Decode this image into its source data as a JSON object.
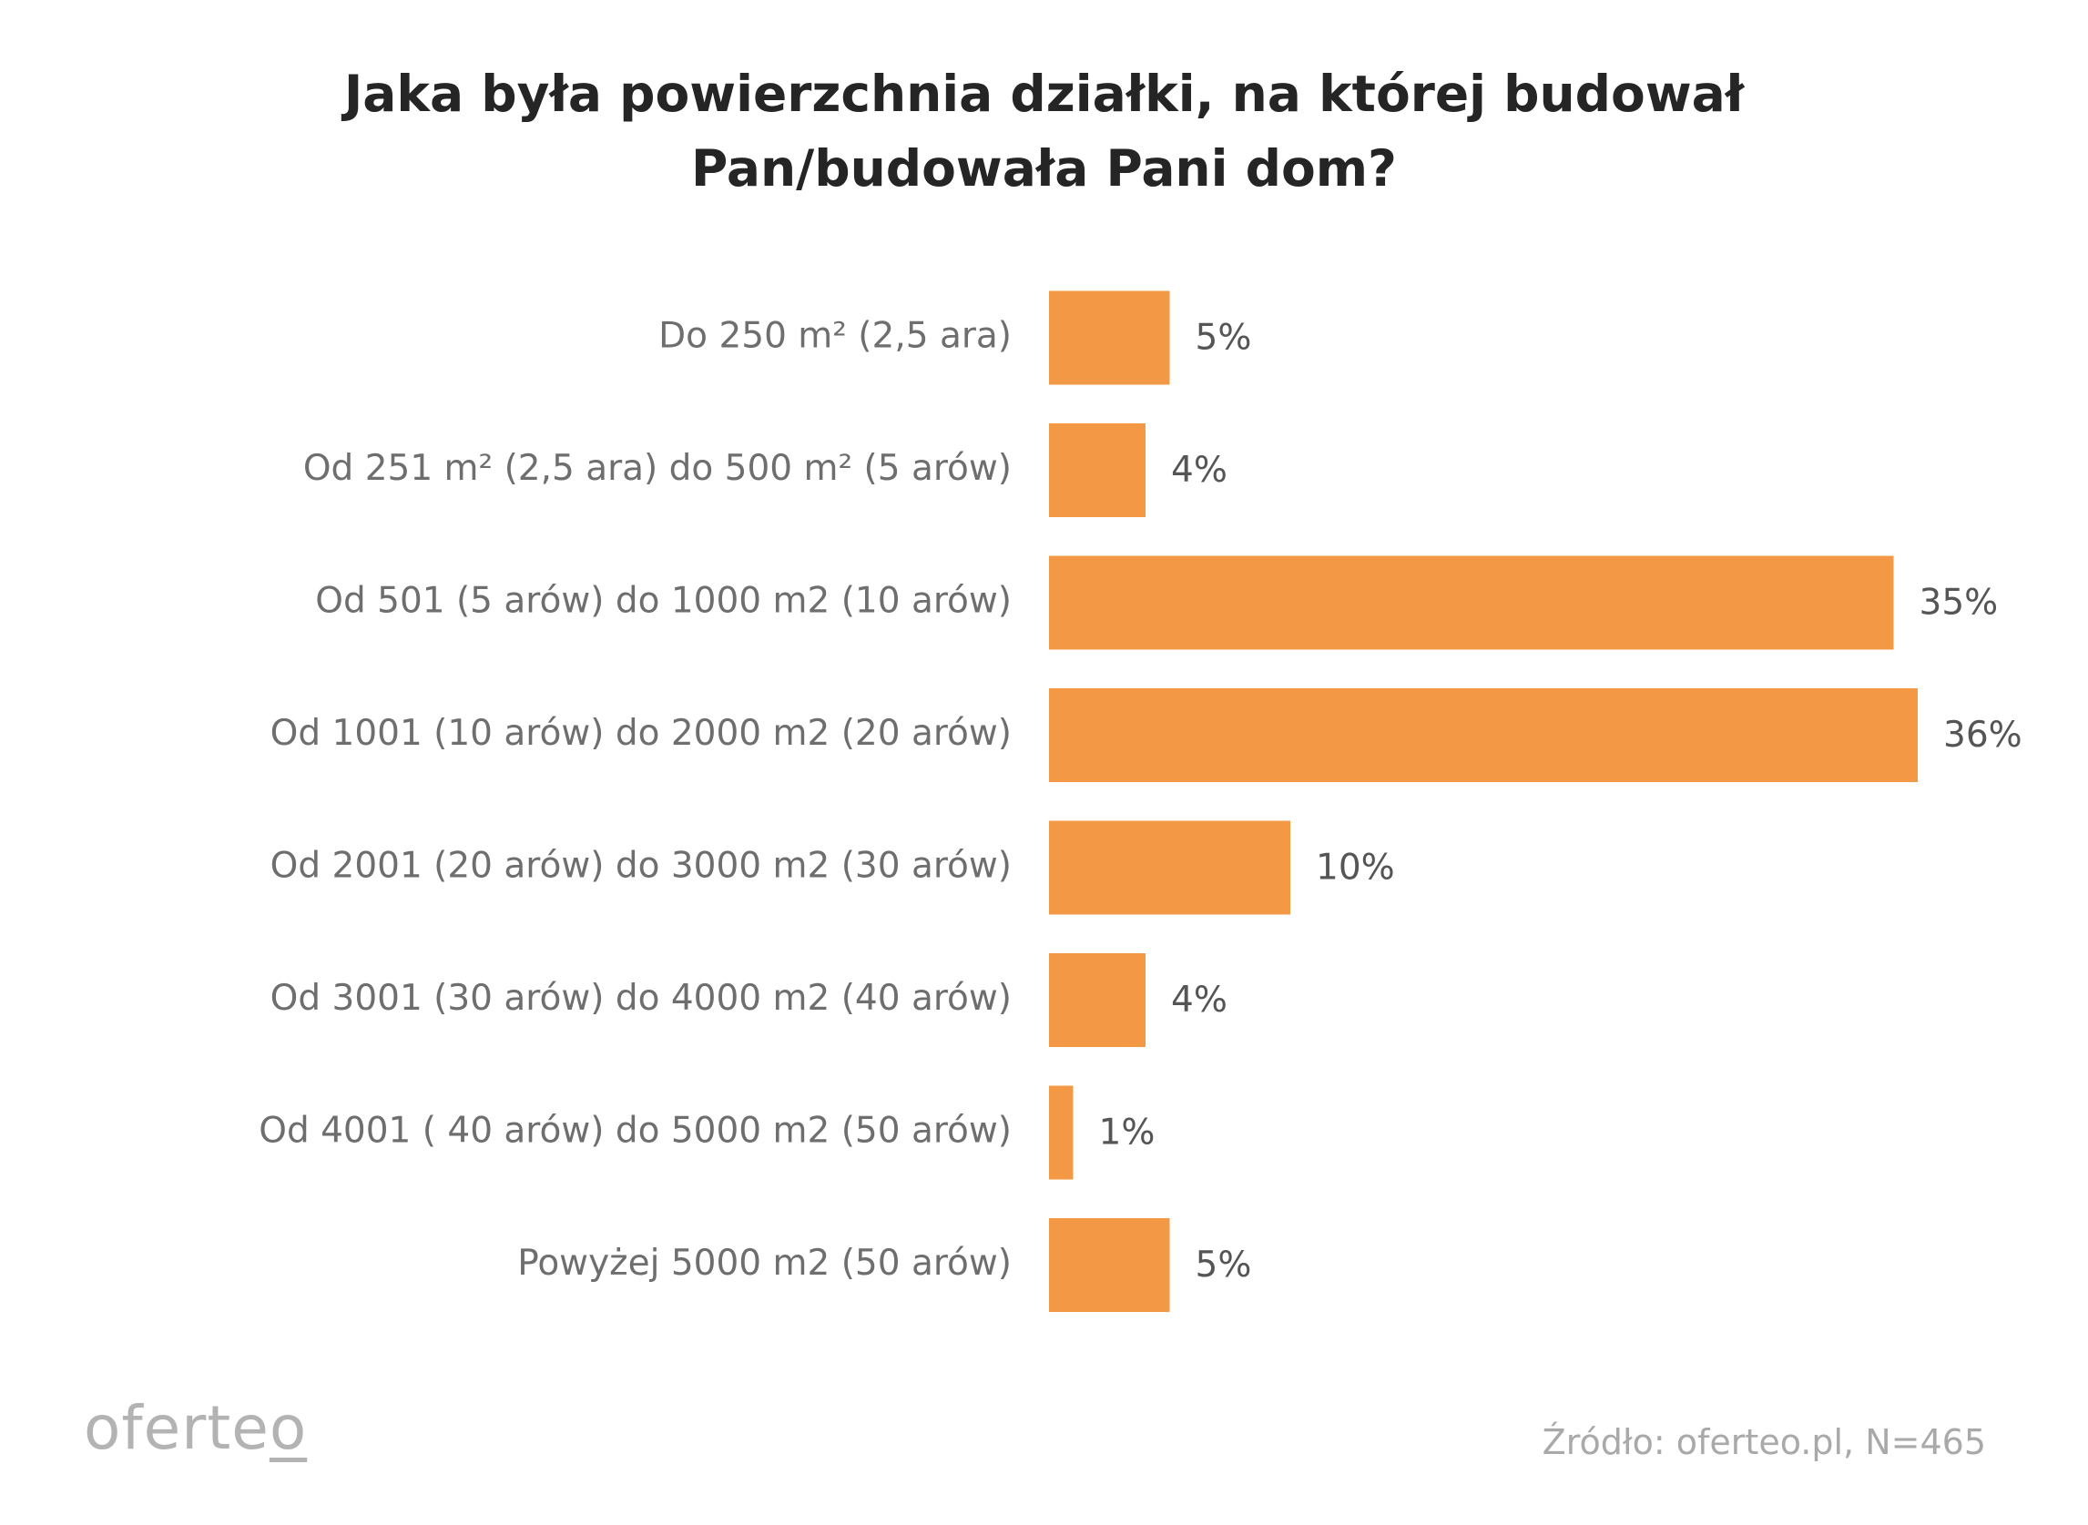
{
  "title_lines": [
    "Jaka była powierzchnia działki, na której budował",
    "Pan/budowała Pani dom?"
  ],
  "logo": {
    "text_main": "oferte",
    "text_last": "o"
  },
  "source": "Źródło: oferteo.pl, N=465",
  "colors": {
    "bar": "#F39845",
    "title": "#252525",
    "label": "#6e6e6e"
  },
  "chart_data": {
    "type": "bar",
    "orientation": "horizontal",
    "title": "Jaka była powierzchnia działki, na której budował Pan/budowała Pani dom?",
    "categories": [
      "Do 250 m² (2,5 ara)",
      "Od 251 m² (2,5 ara) do 500 m² (5 arów)",
      "Od 501 (5 arów) do 1000 m2 (10 arów)",
      "Od 1001 (10 arów) do 2000 m2 (20 arów)",
      "Od 2001 (20 arów) do 3000 m2 (30 arów)",
      "Od 3001 (30 arów) do 4000 m2 (40 arów)",
      "Od 4001 ( 40 arów) do 5000 m2 (50 arów)",
      "Powyżej 5000 m2 (50 arów)"
    ],
    "values": [
      5,
      4,
      35,
      36,
      10,
      4,
      1,
      5
    ],
    "value_labels": [
      "5%",
      "4%",
      "35%",
      "36%",
      "10%",
      "4%",
      "1%",
      "5%"
    ],
    "unit": "%",
    "grid": false,
    "legend": "none"
  }
}
